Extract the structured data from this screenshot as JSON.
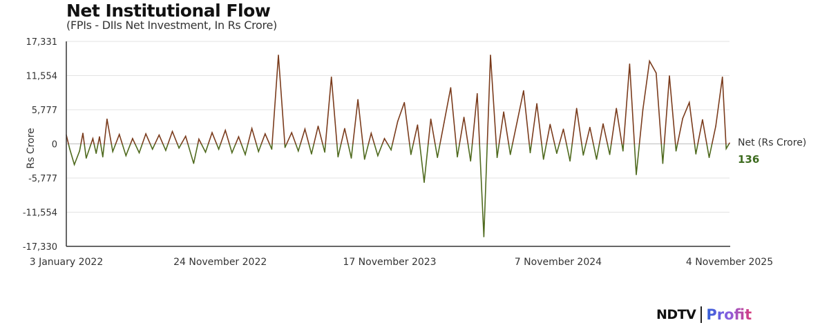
{
  "chart_data": {
    "type": "line",
    "title": "Net Institutional Flow",
    "subtitle": "(FPIs - DIIs Net Investment, In Rs Crore)",
    "ylabel": "Rs Crore",
    "xlabel": "",
    "ylim": [
      -17330,
      17331
    ],
    "yticks": [
      17331,
      11554,
      5777,
      0,
      -5777,
      -11554,
      -17330
    ],
    "ytick_labels": [
      "17,331",
      "11,554",
      "5,777",
      "0",
      "-5,777",
      "-11,554",
      "-17,330"
    ],
    "xlim": [
      "2022-01-03",
      "2025-11-04"
    ],
    "xticks": [
      "2022-01-03",
      "2022-11-24",
      "2023-11-17",
      "2024-11-07",
      "2025-11-04"
    ],
    "xtick_labels": [
      "3 January 2022",
      "24 November 2022",
      "17 November 2023",
      "7 November 2024",
      "4 November 2025"
    ],
    "grid": true,
    "legend_placement": "right",
    "colors": {
      "positive": "#7a3b1c",
      "negative": "#4f6a1e",
      "last_value": "#3d6b1f",
      "grid": "#e3e3e3",
      "axis": "#333333"
    },
    "series": [
      {
        "name": "Net (Rs Crore)",
        "last_value_label": "136",
        "points": [
          [
            "2022-01-03",
            1500
          ],
          [
            "2022-01-10",
            -800
          ],
          [
            "2022-01-20",
            -3500
          ],
          [
            "2022-01-31",
            -1200
          ],
          [
            "2022-02-07",
            1800
          ],
          [
            "2022-02-14",
            -2400
          ],
          [
            "2022-02-28",
            900
          ],
          [
            "2022-03-07",
            -1600
          ],
          [
            "2022-03-14",
            1200
          ],
          [
            "2022-03-21",
            -2200
          ],
          [
            "2022-03-30",
            4200
          ],
          [
            "2022-04-11",
            -1300
          ],
          [
            "2022-04-25",
            1600
          ],
          [
            "2022-05-09",
            -2000
          ],
          [
            "2022-05-23",
            900
          ],
          [
            "2022-06-06",
            -1500
          ],
          [
            "2022-06-20",
            1700
          ],
          [
            "2022-07-04",
            -900
          ],
          [
            "2022-07-18",
            1500
          ],
          [
            "2022-08-01",
            -1100
          ],
          [
            "2022-08-15",
            2100
          ],
          [
            "2022-08-29",
            -700
          ],
          [
            "2022-09-12",
            1300
          ],
          [
            "2022-09-29",
            -3300
          ],
          [
            "2022-10-10",
            800
          ],
          [
            "2022-10-24",
            -1400
          ],
          [
            "2022-11-07",
            1900
          ],
          [
            "2022-11-21",
            -900
          ],
          [
            "2022-12-05",
            2300
          ],
          [
            "2022-12-19",
            -1500
          ],
          [
            "2023-01-02",
            1200
          ],
          [
            "2023-01-16",
            -1800
          ],
          [
            "2023-01-30",
            2600
          ],
          [
            "2023-02-13",
            -1300
          ],
          [
            "2023-02-27",
            1700
          ],
          [
            "2023-03-13",
            -900
          ],
          [
            "2023-03-27",
            15000
          ],
          [
            "2023-04-10",
            -600
          ],
          [
            "2023-04-24",
            1900
          ],
          [
            "2023-05-08",
            -1200
          ],
          [
            "2023-05-22",
            2500
          ],
          [
            "2023-06-05",
            -1700
          ],
          [
            "2023-06-19",
            3000
          ],
          [
            "2023-07-03",
            -1400
          ],
          [
            "2023-07-17",
            11300
          ],
          [
            "2023-07-31",
            -2200
          ],
          [
            "2023-08-14",
            2600
          ],
          [
            "2023-08-28",
            -2400
          ],
          [
            "2023-09-11",
            7500
          ],
          [
            "2023-09-25",
            -2600
          ],
          [
            "2023-10-09",
            1800
          ],
          [
            "2023-10-23",
            -2000
          ],
          [
            "2023-11-06",
            900
          ],
          [
            "2023-11-20",
            -1000
          ],
          [
            "2023-12-04",
            3800
          ],
          [
            "2023-12-18",
            7000
          ],
          [
            "2024-01-01",
            -1800
          ],
          [
            "2024-01-15",
            3200
          ],
          [
            "2024-01-29",
            -6500
          ],
          [
            "2024-02-12",
            4200
          ],
          [
            "2024-02-26",
            -2300
          ],
          [
            "2024-03-11",
            3600
          ],
          [
            "2024-03-25",
            9500
          ],
          [
            "2024-04-08",
            -2200
          ],
          [
            "2024-04-22",
            4500
          ],
          [
            "2024-05-06",
            -2900
          ],
          [
            "2024-05-20",
            8500
          ],
          [
            "2024-06-03",
            -15700
          ],
          [
            "2024-06-17",
            15000
          ],
          [
            "2024-07-01",
            -2300
          ],
          [
            "2024-07-15",
            5400
          ],
          [
            "2024-07-29",
            -1800
          ],
          [
            "2024-08-12",
            3600
          ],
          [
            "2024-08-26",
            9000
          ],
          [
            "2024-09-09",
            -1500
          ],
          [
            "2024-09-23",
            6800
          ],
          [
            "2024-10-07",
            -2600
          ],
          [
            "2024-10-21",
            3300
          ],
          [
            "2024-11-04",
            -1600
          ],
          [
            "2024-11-18",
            2500
          ],
          [
            "2024-12-02",
            -2900
          ],
          [
            "2024-12-16",
            6000
          ],
          [
            "2024-12-30",
            -1900
          ],
          [
            "2025-01-13",
            2800
          ],
          [
            "2025-01-27",
            -2600
          ],
          [
            "2025-02-10",
            3400
          ],
          [
            "2025-02-24",
            -1800
          ],
          [
            "2025-03-10",
            6000
          ],
          [
            "2025-03-24",
            -1200
          ],
          [
            "2025-04-07",
            13500
          ],
          [
            "2025-04-21",
            -5200
          ],
          [
            "2025-05-05",
            5800
          ],
          [
            "2025-05-19",
            14000
          ],
          [
            "2025-06-02",
            12000
          ],
          [
            "2025-06-16",
            -3300
          ],
          [
            "2025-06-30",
            11500
          ],
          [
            "2025-07-14",
            -1200
          ],
          [
            "2025-07-28",
            4300
          ],
          [
            "2025-08-11",
            7000
          ],
          [
            "2025-08-25",
            -1700
          ],
          [
            "2025-09-08",
            4100
          ],
          [
            "2025-09-22",
            -2300
          ],
          [
            "2025-10-06",
            3000
          ],
          [
            "2025-10-20",
            11300
          ],
          [
            "2025-10-28",
            -800
          ],
          [
            "2025-11-04",
            136
          ]
        ]
      }
    ]
  },
  "brand": {
    "logo_text_1": "NDTV",
    "logo_text_2": "Profit"
  }
}
